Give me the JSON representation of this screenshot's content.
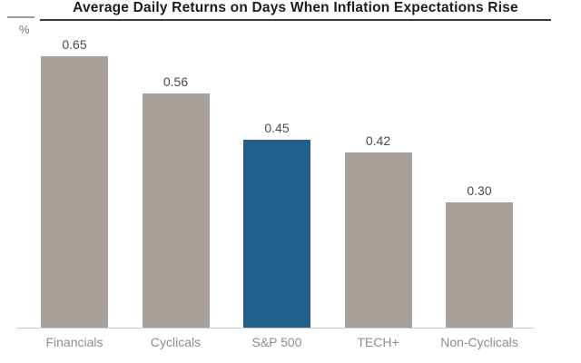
{
  "chart_data": {
    "type": "bar",
    "title": "Average Daily Returns on Days When Inflation Expectations Rise",
    "xlabel": "",
    "ylabel": "%",
    "categories": [
      "Financials",
      "Cyclicals",
      "S&P 500",
      "TECH+",
      "Non-Cyclicals"
    ],
    "values": [
      0.65,
      0.56,
      0.45,
      0.42,
      0.3
    ],
    "value_labels": [
      "0.65",
      "0.56",
      "0.45",
      "0.42",
      "0.30"
    ],
    "ylim": [
      0,
      0.72
    ],
    "grid": false,
    "legend": "none",
    "highlight_index": 2,
    "colors": {
      "bar_default": "#a7a099",
      "bar_highlight": "#235f8d",
      "value_label_text": "#4b4b4d",
      "category_label_text": "#8a8d8f",
      "axis_line": "#c9c9c9",
      "title_text": "#1d1d1f",
      "title_underline": "#3b3b3b",
      "title_dash": "#9b9b9b",
      "unit_label_text": "#707274",
      "background": "#ffffff"
    }
  }
}
